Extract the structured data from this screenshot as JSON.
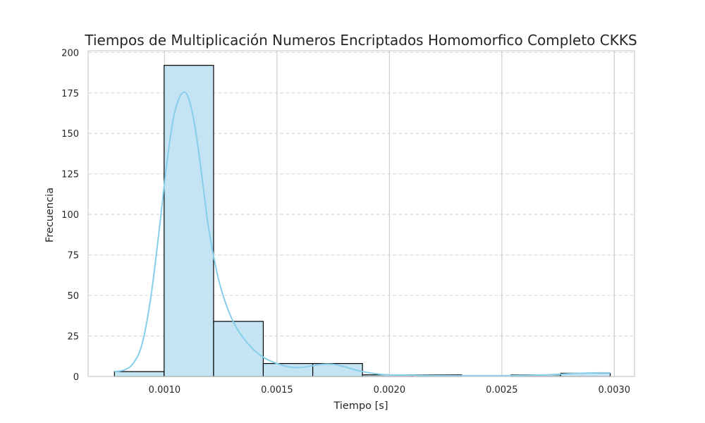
{
  "chart_data": {
    "type": "bar",
    "subtype": "histogram",
    "title": "Tiempos de Multiplicación Numeros Encriptados Homomorfico Completo CKKS",
    "xlabel": "Tiempo [s]",
    "ylabel": "Frecuencia",
    "xlim": [
      0.00066,
      0.00309
    ],
    "ylim": [
      0,
      201
    ],
    "x_ticks": [
      "0.0010",
      "0.0015",
      "0.0020",
      "0.0025",
      "0.0030"
    ],
    "y_ticks": [
      "0",
      "25",
      "50",
      "75",
      "100",
      "125",
      "150",
      "175",
      "200"
    ],
    "x_tick_values": [
      0.001,
      0.0015,
      0.002,
      0.0025,
      0.003
    ],
    "y_tick_values": [
      0,
      25,
      50,
      75,
      100,
      125,
      150,
      175,
      200
    ],
    "bins": [
      {
        "x0": 0.000777,
        "x1": 0.000998,
        "count": 3
      },
      {
        "x0": 0.000998,
        "x1": 0.001218,
        "count": 192
      },
      {
        "x0": 0.001218,
        "x1": 0.001439,
        "count": 34
      },
      {
        "x0": 0.001439,
        "x1": 0.001659,
        "count": 8
      },
      {
        "x0": 0.001659,
        "x1": 0.00188,
        "count": 8
      },
      {
        "x0": 0.00188,
        "x1": 0.0021,
        "count": 1
      },
      {
        "x0": 0.0021,
        "x1": 0.002321,
        "count": 1
      },
      {
        "x0": 0.002321,
        "x1": 0.002541,
        "count": 0
      },
      {
        "x0": 0.002541,
        "x1": 0.002762,
        "count": 1
      },
      {
        "x0": 0.002762,
        "x1": 0.002982,
        "count": 2
      }
    ],
    "kde": {
      "x": [
        0.000777,
        0.00082,
        0.00086,
        0.0009,
        0.00094,
        0.00098,
        0.001,
        0.00102,
        0.00104,
        0.00106,
        0.00108,
        0.0011,
        0.00112,
        0.00114,
        0.00116,
        0.00118,
        0.0012,
        0.00124,
        0.00128,
        0.00132,
        0.00136,
        0.0014,
        0.00145,
        0.0015,
        0.00155,
        0.0016,
        0.00165,
        0.0017,
        0.00175,
        0.0018,
        0.00185,
        0.0019,
        0.00195,
        0.002,
        0.0021,
        0.0022,
        0.0023,
        0.0024,
        0.0025,
        0.0026,
        0.0027,
        0.0028,
        0.0029,
        0.002982
      ],
      "y": [
        3,
        4,
        8,
        20,
        50,
        95,
        120,
        142,
        160,
        170,
        175,
        174,
        165,
        150,
        130,
        108,
        88,
        60,
        42,
        30,
        22,
        16,
        11,
        8,
        6,
        5.5,
        6.5,
        7.5,
        7.5,
        6,
        4,
        2.5,
        1.5,
        1,
        0.8,
        0.6,
        0.5,
        0.5,
        0.5,
        0.7,
        1,
        1.7,
        2.2,
        2.2
      ]
    },
    "grid": true,
    "colors": {
      "bar_fill": "#c4e4f4",
      "bar_edge": "#000000",
      "kde_line": "#87ceeb",
      "grid": "#cccccc",
      "spine": "#cccccc",
      "text": "#262626"
    }
  }
}
